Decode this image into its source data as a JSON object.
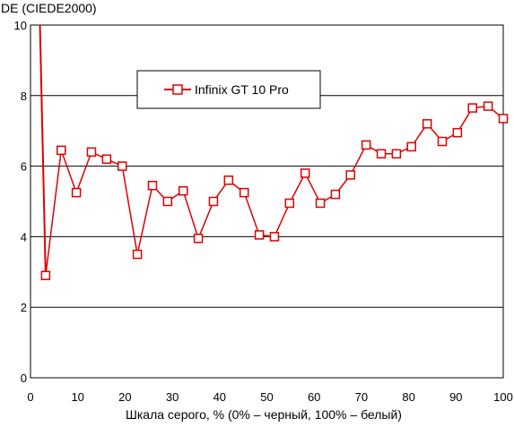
{
  "chart_data": {
    "type": "line",
    "title": "",
    "ylabel": "DE (CIEDE2000)",
    "xlabel": "Шкала серого, % (0% – черный, 100% – белый)",
    "xlim": [
      0,
      100
    ],
    "ylim": [
      0,
      10
    ],
    "x_ticks": [
      "0",
      "10",
      "20",
      "30",
      "40",
      "50",
      "60",
      "70",
      "80",
      "90",
      "100"
    ],
    "y_ticks": [
      "0",
      "2",
      "4",
      "6",
      "8",
      "10"
    ],
    "grid": "horizontal",
    "legend_position": "top-center",
    "colors": {
      "series": "#dd0000",
      "grid": "#000000",
      "marker_fill": "#ffffff"
    },
    "series": [
      {
        "name": "Infinix GT 10 Pro",
        "marker": "square",
        "x": [
          3.2,
          6.5,
          9.7,
          12.9,
          16.1,
          19.4,
          22.6,
          25.8,
          29.0,
          32.3,
          35.5,
          38.7,
          41.9,
          45.2,
          48.4,
          51.6,
          54.8,
          58.1,
          61.3,
          64.5,
          67.7,
          71.0,
          74.2,
          77.4,
          80.6,
          83.9,
          87.1,
          90.3,
          93.5,
          96.8,
          100.0
        ],
        "y": [
          2.9,
          6.45,
          5.25,
          6.4,
          6.2,
          6.0,
          3.5,
          5.45,
          5.0,
          5.3,
          3.95,
          5.0,
          5.6,
          5.25,
          4.05,
          4.0,
          4.95,
          5.8,
          4.95,
          5.2,
          5.75,
          6.6,
          6.35,
          6.35,
          6.55,
          7.2,
          6.7,
          6.95,
          7.65,
          7.7,
          7.35
        ]
      }
    ],
    "extra_segment": {
      "x": [
        2.0,
        3.2
      ],
      "y": [
        10.0,
        2.9
      ],
      "note": ""
    }
  }
}
